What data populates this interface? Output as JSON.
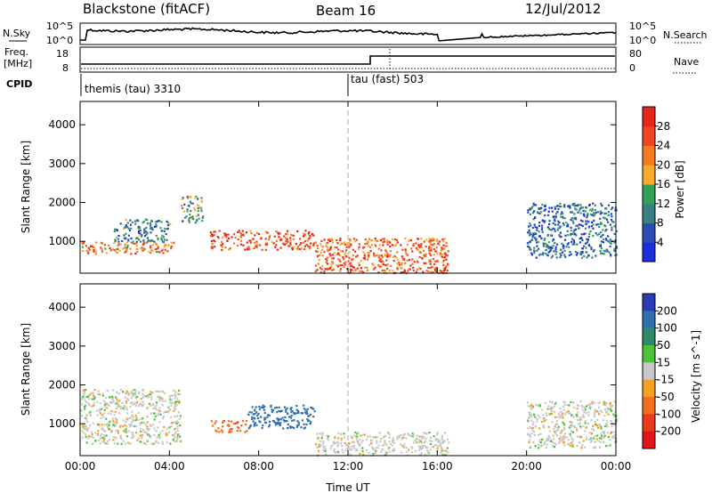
{
  "header": {
    "station": "Blackstone (fitACF)",
    "beam": "Beam 16",
    "date": "12/Jul/2012"
  },
  "noise_panel": {
    "left_label": "N.Sky",
    "right_label": "N.Search",
    "left_ticks": [
      "10^5",
      "10^0"
    ],
    "right_ticks": [
      "10^5",
      "10^0"
    ]
  },
  "freq_panel": {
    "left_label_line1": "Freq.",
    "left_label_line2": "[MHz]",
    "right_label": "Nave",
    "left_ticks": [
      "18",
      "8"
    ],
    "right_ticks": [
      "80",
      "0"
    ]
  },
  "cpid_panel": {
    "label": "CPID",
    "modes": [
      {
        "name": "themis (tau) 3310",
        "start_hour": 0
      },
      {
        "name": "tau (fast) 503",
        "start_hour": 12.0
      }
    ]
  },
  "x_axis": {
    "label": "Time UT",
    "ticks": [
      "00:00",
      "04:00",
      "08:00",
      "12:00",
      "16:00",
      "20:00",
      "00:00"
    ],
    "tick_hours": [
      0,
      4,
      8,
      12,
      16,
      20,
      24
    ],
    "range_hours": [
      0,
      24
    ]
  },
  "y_axis": {
    "label": "Slant Range [km]",
    "ticks": [
      "1000",
      "2000",
      "3000",
      "4000"
    ],
    "tick_values": [
      1000,
      2000,
      3000,
      4000
    ],
    "range_km": [
      180,
      4600
    ]
  },
  "power_scale": {
    "label": "Power [dB]",
    "tick_labels": [
      "4",
      "8",
      "12",
      "16",
      "20",
      "24",
      "28"
    ],
    "tick_values": [
      4,
      8,
      12,
      16,
      20,
      24,
      28
    ],
    "range": [
      0,
      32
    ],
    "colors": [
      "#1b2fe0",
      "#2a4db3",
      "#3a7f86",
      "#35a05a",
      "#f7ad2b",
      "#f47b1e",
      "#ef4520",
      "#e8251b"
    ]
  },
  "velocity_scale": {
    "label": "Velocity [m s^-1]",
    "tick_labels": [
      "200",
      "100",
      "50",
      "15",
      "-15",
      "-50",
      "-100",
      "-200"
    ],
    "colors": [
      "#2a3cb5",
      "#2f6fb0",
      "#2e8a6d",
      "#4cc13a",
      "#c8c8c8",
      "#f5a020",
      "#f36f1d",
      "#e93a1c",
      "#e3151b"
    ]
  },
  "chart_data": [
    {
      "type": "heatmap",
      "title": "Power [dB]",
      "xlabel": "Time UT",
      "ylabel": "Slant Range [km]",
      "xlim": [
        0,
        24
      ],
      "ylim": [
        180,
        4600
      ],
      "features": [
        {
          "t0": 0.0,
          "t1": 4.2,
          "r0": 700,
          "r1": 1000,
          "value": 22
        },
        {
          "t0": 1.5,
          "t1": 4.0,
          "r0": 1000,
          "r1": 1600,
          "value": 10
        },
        {
          "t0": 4.5,
          "t1": 5.5,
          "r0": 1500,
          "r1": 2200,
          "value": 14
        },
        {
          "t0": 5.8,
          "t1": 10.5,
          "r0": 800,
          "r1": 1300,
          "value": 26
        },
        {
          "t0": 10.5,
          "t1": 16.5,
          "r0": 200,
          "r1": 1100,
          "value": 24
        },
        {
          "t0": 20.0,
          "t1": 24.0,
          "r0": 600,
          "r1": 2000,
          "value": 8
        }
      ]
    },
    {
      "type": "heatmap",
      "title": "Velocity [m s^-1]",
      "xlabel": "Time UT",
      "ylabel": "Slant Range [km]",
      "xlim": [
        0,
        24
      ],
      "ylim": [
        180,
        4600
      ],
      "features": [
        {
          "t0": 0.0,
          "t1": 4.5,
          "r0": 500,
          "r1": 1900,
          "value": 0
        },
        {
          "t0": 5.8,
          "t1": 7.5,
          "r0": 800,
          "r1": 1100,
          "value": -60
        },
        {
          "t0": 7.5,
          "t1": 10.5,
          "r0": 900,
          "r1": 1500,
          "value": 120
        },
        {
          "t0": 10.5,
          "t1": 16.5,
          "r0": 200,
          "r1": 800,
          "value": 0
        },
        {
          "t0": 20.0,
          "t1": 24.0,
          "r0": 400,
          "r1": 1600,
          "value": 0
        }
      ]
    }
  ]
}
